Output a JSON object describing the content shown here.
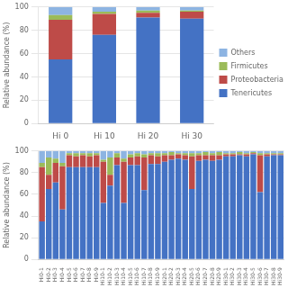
{
  "chart_data": [
    {
      "type": "bar",
      "stacked": true,
      "grid": true,
      "legend": "right",
      "categories": [
        "Hi 0",
        "Hi 10",
        "Hi 20",
        "Hi 30"
      ],
      "series": [
        {
          "name": "Tenericutes",
          "color": "#4472C4",
          "values": [
            55,
            76,
            91,
            90
          ]
        },
        {
          "name": "Proteobacteria",
          "color": "#BE4B48",
          "values": [
            34,
            18,
            4,
            6
          ]
        },
        {
          "name": "Firmicutes",
          "color": "#9BBB59",
          "values": [
            4,
            2,
            2,
            1
          ]
        },
        {
          "name": "Others",
          "color": "#8DB4E2",
          "values": [
            7,
            4,
            3,
            3
          ]
        }
      ],
      "y_label": "Relative abundance (%)",
      "ylim": [
        0,
        100
      ],
      "yticks": [
        0,
        20,
        40,
        60,
        80,
        100
      ]
    },
    {
      "type": "bar",
      "stacked": true,
      "grid": true,
      "categories": [
        "Hi0-1",
        "Hi0-2",
        "Hi0-3",
        "Hi0-4",
        "Hi0-5",
        "Hi0-6",
        "Hi0-7",
        "Hi0-8",
        "Hi0-9",
        "Hi10-1",
        "Hi10-2",
        "Hi10-3",
        "Hi10-4",
        "Hi10-5",
        "Hi10-6",
        "Hi10-7",
        "Hi10-8",
        "Hi10-9",
        "Hi20-1",
        "Hi20-2",
        "Hi20-3",
        "Hi20-4",
        "Hi20-5",
        "Hi20-6",
        "Hi20-7",
        "Hi20-8",
        "Hi20-9",
        "Hi30-1",
        "Hi30-2",
        "Hi30-3",
        "Hi30-4",
        "Hi30-5",
        "Hi30-6",
        "Hi30-7",
        "Hi30-8",
        "Hi30-9"
      ],
      "series": [
        {
          "color": "#4472C4",
          "values": [
            35,
            65,
            71,
            46,
            85,
            85,
            85,
            85,
            85,
            52,
            68,
            87,
            52,
            87,
            87,
            64,
            88,
            88,
            90,
            92,
            93,
            92,
            65,
            91,
            92,
            91,
            92,
            95,
            95,
            96,
            95,
            97,
            62,
            95,
            96,
            96
          ]
        },
        {
          "color": "#BE4B48",
          "values": [
            50,
            13,
            18,
            40,
            11,
            10,
            11,
            10,
            11,
            38,
            10,
            7,
            38,
            7,
            8,
            30,
            8,
            7,
            6,
            4,
            4,
            4,
            30,
            5,
            4,
            5,
            4,
            2,
            2,
            1,
            2,
            1,
            34,
            2,
            1,
            1
          ]
        },
        {
          "color": "#9BBB59",
          "values": [
            4,
            16,
            4,
            3,
            2,
            3,
            2,
            3,
            2,
            2,
            16,
            4,
            3,
            3,
            3,
            3,
            2,
            3,
            2,
            3,
            1,
            2,
            3,
            2,
            3,
            2,
            3,
            1,
            1,
            2,
            1,
            1,
            2,
            1,
            1,
            1
          ]
        },
        {
          "color": "#8DB4E2",
          "values": [
            11,
            6,
            7,
            11,
            2,
            2,
            2,
            2,
            2,
            8,
            6,
            2,
            7,
            3,
            2,
            3,
            2,
            2,
            2,
            1,
            2,
            2,
            2,
            2,
            1,
            2,
            1,
            2,
            2,
            1,
            2,
            1,
            2,
            2,
            2,
            2
          ]
        }
      ],
      "y_label": "Relative abundance (%)",
      "ylim": [
        0,
        100
      ],
      "yticks": [
        0,
        20,
        40,
        60,
        80,
        100
      ]
    }
  ]
}
